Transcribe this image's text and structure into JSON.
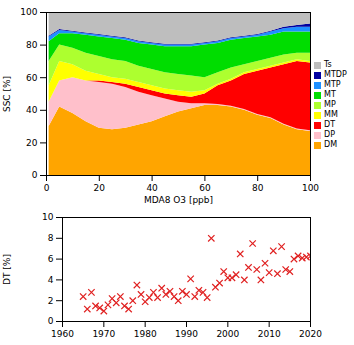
{
  "chart_data": [
    {
      "type": "area",
      "stacked": true,
      "xlabel": "MDA8 O3 [ppb]",
      "ylabel": "SSC [%]",
      "x": [
        1,
        5,
        10,
        15,
        20,
        25,
        30,
        35,
        40,
        45,
        50,
        55,
        60,
        65,
        70,
        75,
        80,
        85,
        90,
        95,
        100
      ],
      "series": [
        {
          "name": "DM",
          "color": "#ffa500",
          "values": [
            30,
            42,
            38,
            33,
            29,
            28,
            29,
            31,
            33,
            36,
            39,
            41,
            43,
            43,
            42,
            40,
            37,
            35,
            31,
            28,
            27
          ]
        },
        {
          "name": "DP",
          "color": "#ffc0cb",
          "values": [
            15,
            16,
            22,
            25,
            28,
            28,
            25,
            20,
            16,
            11,
            6,
            3,
            1,
            0.5,
            0.5,
            0.5,
            0.5,
            0.5,
            0.5,
            0.5,
            0.5
          ]
        },
        {
          "name": "DT",
          "color": "#ff0000",
          "values": [
            0,
            0,
            0,
            0,
            1,
            1,
            2,
            3,
            3,
            3,
            4,
            4,
            6,
            11.5,
            15.5,
            21.5,
            26.5,
            30.5,
            36.5,
            41.5,
            41.5
          ]
        },
        {
          "name": "MM",
          "color": "#ffff00",
          "values": [
            10,
            12,
            8,
            6,
            4,
            3,
            3,
            3,
            3,
            3,
            3,
            3,
            2,
            1,
            1,
            1,
            1,
            1,
            1,
            1,
            1
          ]
        },
        {
          "name": "MP",
          "color": "#adff2f",
          "values": [
            15,
            10,
            10,
            11,
            11,
            11,
            11,
            10,
            10,
            10,
            10,
            10,
            8,
            7,
            7,
            5,
            5,
            5,
            5,
            4,
            5
          ]
        },
        {
          "name": "MT",
          "color": "#00dd00",
          "values": [
            12,
            7,
            9,
            11,
            12,
            13,
            13,
            14,
            15,
            16,
            17,
            18,
            20,
            18,
            17,
            16,
            15,
            14,
            14,
            13,
            13
          ]
        },
        {
          "name": "MTP",
          "color": "#1e90ff",
          "values": [
            3,
            2,
            1,
            1,
            1,
            1,
            1,
            1,
            1,
            1,
            1,
            1,
            1,
            1,
            1,
            1,
            1,
            2,
            2,
            3,
            3
          ]
        },
        {
          "name": "MTDP",
          "color": "#0000a0",
          "values": [
            0.5,
            0.5,
            0.5,
            0.5,
            0.5,
            0.5,
            0.5,
            0.5,
            0.5,
            0.5,
            0.5,
            0.5,
            0.5,
            0.5,
            0.5,
            0.5,
            0.5,
            0.5,
            1,
            1,
            2
          ]
        },
        {
          "name": "Ts",
          "color": "#bebebe",
          "values": [
            14.5,
            10.5,
            11.5,
            12.5,
            13.5,
            14.5,
            15.5,
            17.5,
            18.5,
            19.5,
            19.5,
            19.5,
            18.5,
            17.5,
            15.5,
            14.5,
            13.5,
            11.5,
            9,
            8,
            7
          ]
        }
      ],
      "xlim": [
        0,
        100
      ],
      "ylim": [
        0,
        100
      ],
      "xticks": [
        0,
        20,
        40,
        60,
        80,
        100
      ],
      "yticks": [
        0,
        20,
        40,
        60,
        80,
        100
      ],
      "legend": "right"
    },
    {
      "type": "scatter",
      "ylabel": "DT [%]",
      "color": "#e02020",
      "marker": "x",
      "x": [
        1965,
        1966,
        1967,
        1968,
        1969,
        1970,
        1971,
        1972,
        1973,
        1974,
        1975,
        1976,
        1977,
        1978,
        1979,
        1980,
        1981,
        1982,
        1983,
        1984,
        1985,
        1986,
        1987,
        1988,
        1989,
        1990,
        1991,
        1992,
        1993,
        1994,
        1995,
        1996,
        1997,
        1998,
        1999,
        2000,
        2001,
        2002,
        2003,
        2004,
        2005,
        2006,
        2007,
        2008,
        2009,
        2010,
        2011,
        2012,
        2013,
        2014,
        2015,
        2016,
        2017,
        2018,
        2019,
        2020
      ],
      "values": [
        2.4,
        1.2,
        2.8,
        1.5,
        1.3,
        1.0,
        1.6,
        2.2,
        1.8,
        2.4,
        1.5,
        1.2,
        2.0,
        3.5,
        2.6,
        1.9,
        2.3,
        2.8,
        2.3,
        3.2,
        2.6,
        2.9,
        2.4,
        2.0,
        2.9,
        2.6,
        4.1,
        2.4,
        3.0,
        2.8,
        2.3,
        8.0,
        3.3,
        3.7,
        4.8,
        4.2,
        4.2,
        4.5,
        6.5,
        4.0,
        5.2,
        7.5,
        5.0,
        4.0,
        5.6,
        4.7,
        6.8,
        4.6,
        7.2,
        5.0,
        4.8,
        6.0,
        6.3,
        6.1,
        6.2,
        6.3
      ],
      "xlim": [
        1960,
        2020
      ],
      "ylim": [
        0,
        10
      ],
      "xticks": [
        1960,
        1970,
        1980,
        1990,
        2000,
        2010,
        2020
      ],
      "yticks": [
        0,
        2,
        4,
        6,
        8,
        10
      ]
    }
  ]
}
